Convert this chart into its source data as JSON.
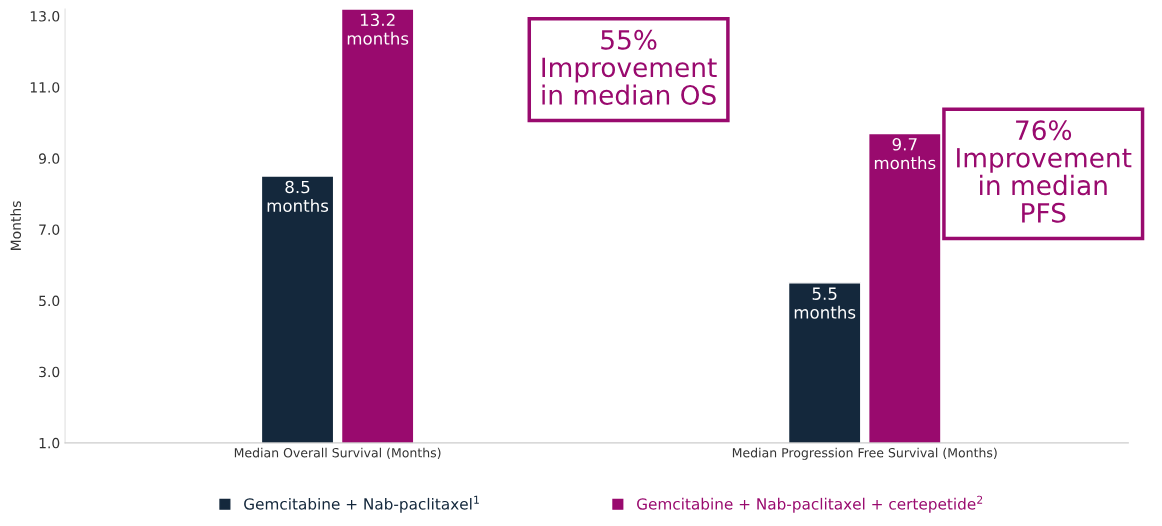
{
  "chart_data": {
    "type": "bar",
    "ylabel": "Months",
    "categories": [
      "Median Overall Survival (Months)",
      "Median Progression Free Survival (Months)"
    ],
    "series": [
      {
        "name": "Gemcitabine + Nab-paclitaxel$^{1}$",
        "color": "#14283c",
        "values": [
          8.5,
          5.5
        ],
        "value_labels": [
          "8.5\nmonths",
          "5.5\nmonths"
        ]
      },
      {
        "name": "Gemcitabine + Nab-paclitaxel + certepetide$^{2}$",
        "color": "#990a6e",
        "values": [
          13.2,
          9.7
        ],
        "value_labels": [
          "13.2\nmonths",
          "9.7\nmonths"
        ]
      }
    ],
    "ylim": [
      1,
      13.2
    ],
    "yticks": [
      {
        "value": 1,
        "label": "1.0"
      },
      {
        "value": 3,
        "label": "3.0"
      },
      {
        "value": 5,
        "label": "5.0"
      },
      {
        "value": 7,
        "label": "7.0"
      },
      {
        "value": 9,
        "label": "9.0"
      },
      {
        "value": 11,
        "label": "11.0"
      },
      {
        "value": 13,
        "label": "13.0"
      }
    ],
    "grid": false,
    "legend": "bottom",
    "annotations": [
      "55%\nImprovement\nin median OS",
      "76%\nImprovement\nin median\nPFS"
    ]
  }
}
